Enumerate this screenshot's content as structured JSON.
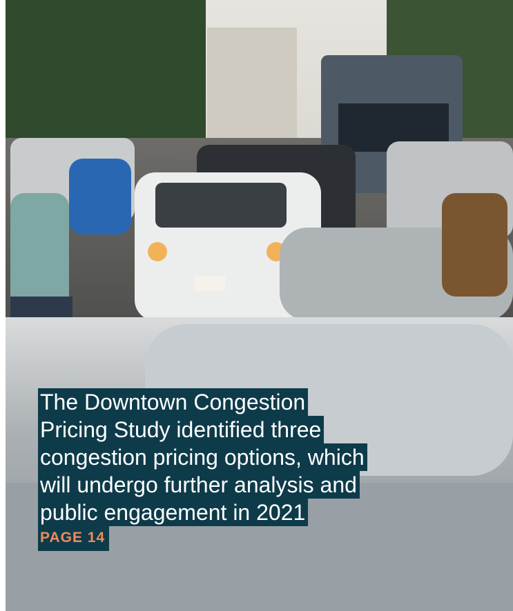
{
  "caption": {
    "lines": [
      "The Downtown Congestion",
      "Pricing Study identified three",
      "congestion pricing options, which",
      "will undergo further analysis and",
      "public engagement in 2021"
    ],
    "page_ref": "PAGE 14"
  }
}
